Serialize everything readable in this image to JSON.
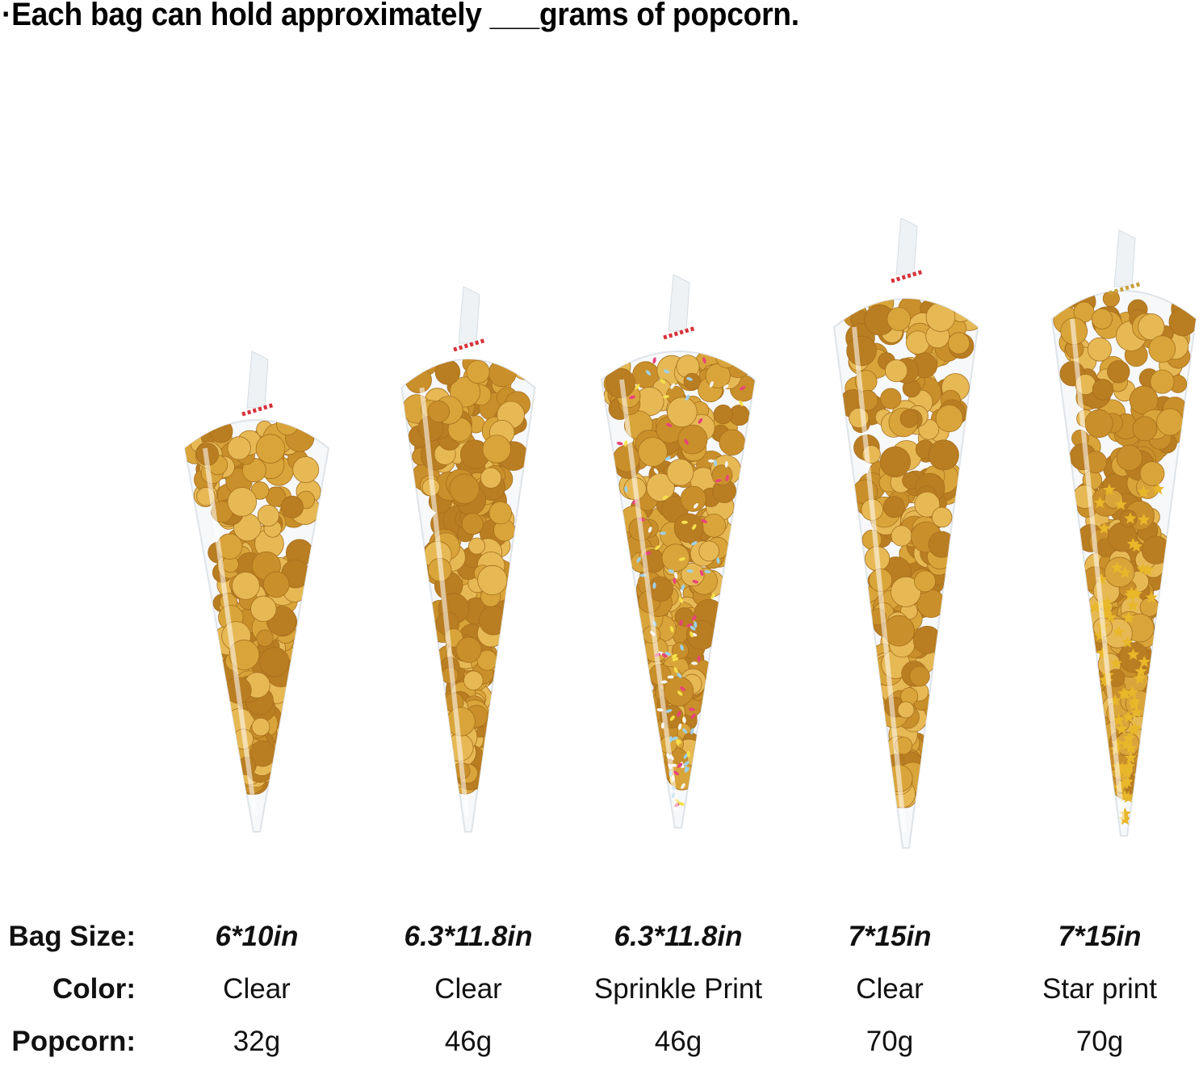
{
  "title": "·Each bag can hold approximately ___grams of popcorn.",
  "table": {
    "labels": {
      "size": "Bag Size:",
      "color": "Color:",
      "popcorn": "Popcorn:"
    },
    "bags": [
      {
        "size": "6*10in",
        "color": "Clear",
        "popcorn": "32g"
      },
      {
        "size": "6.3*11.8in",
        "color": "Clear",
        "popcorn": "46g"
      },
      {
        "size": "6.3*11.8in",
        "color": "Sprinkle Print",
        "popcorn": "46g"
      },
      {
        "size": "7*15in",
        "color": "Clear",
        "popcorn": "70g"
      },
      {
        "size": "7*15in",
        "color": "Star print",
        "popcorn": "70g"
      }
    ]
  },
  "colors": {
    "popcorn": "#d9a53a",
    "tie_red": "#d8323a",
    "star_gold": "#e8b72a"
  }
}
